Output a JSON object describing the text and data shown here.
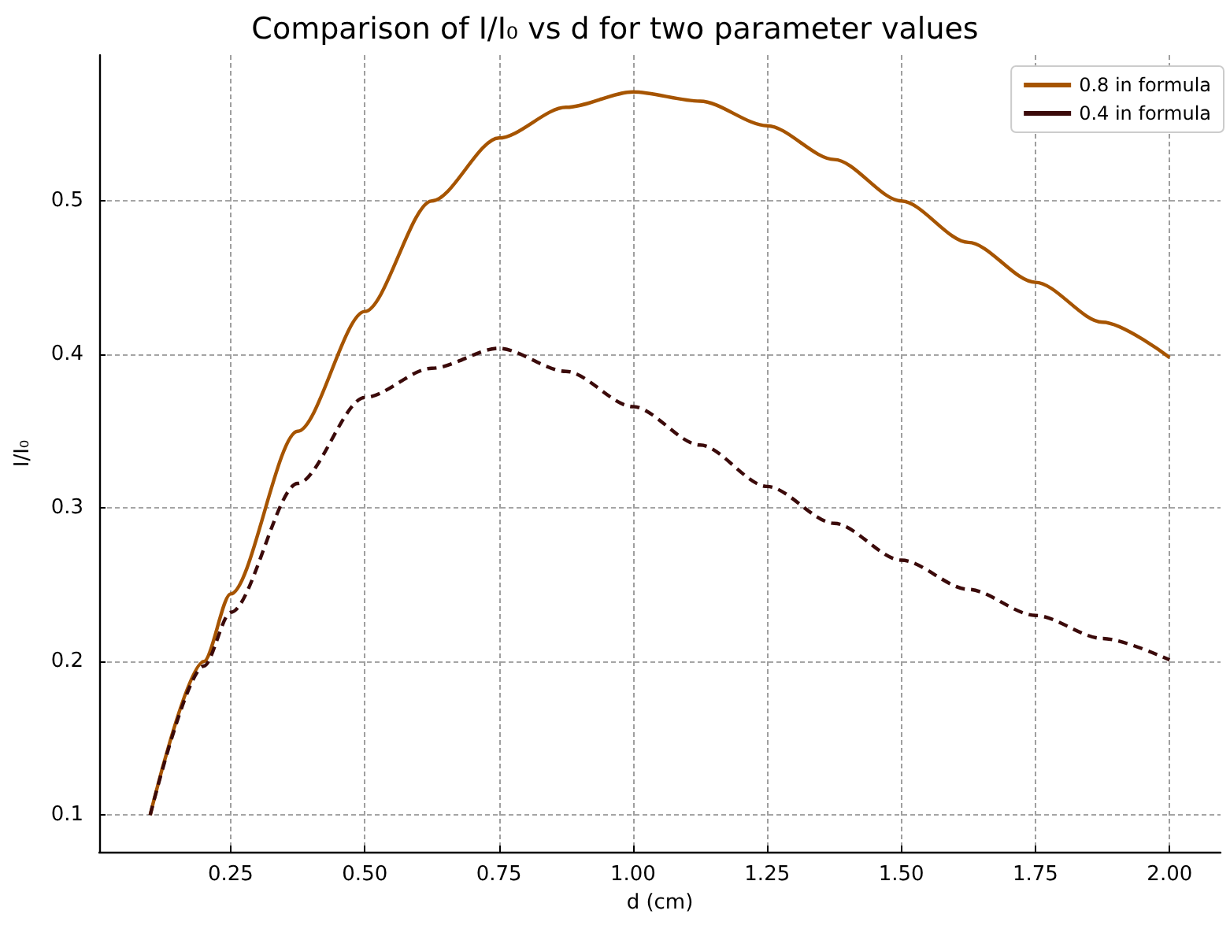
{
  "chart_data": {
    "type": "line",
    "title": "Comparison of I/I₀ vs d for two parameter values",
    "xlabel": "d (cm)",
    "ylabel": "I/I₀",
    "x": [
      0.1,
      0.2,
      0.25,
      0.375,
      0.5,
      0.625,
      0.75,
      0.875,
      1.0,
      1.125,
      1.25,
      1.375,
      1.5,
      1.625,
      1.75,
      1.875,
      2.0
    ],
    "series": [
      {
        "name": "0.8 in formula",
        "color": "#a65400",
        "line_style": "solid",
        "values": [
          0.1,
          0.2,
          0.244,
          0.35,
          0.428,
          0.5,
          0.541,
          0.561,
          0.571,
          0.565,
          0.549,
          0.527,
          0.5,
          0.473,
          0.447,
          0.421,
          0.398
        ]
      },
      {
        "name": "0.4 in formula",
        "color": "#3b0a0a",
        "line_style": "dashed",
        "values": [
          0.1,
          0.197,
          0.232,
          0.316,
          0.372,
          0.391,
          0.404,
          0.389,
          0.366,
          0.341,
          0.314,
          0.29,
          0.266,
          0.247,
          0.23,
          0.215,
          0.201
        ]
      }
    ],
    "xlim": [
      0.005,
      2.095
    ],
    "ylim": [
      0.076,
      0.595
    ],
    "xticks": [
      0.25,
      {
        "value": 0.5,
        "label": "0.50"
      },
      0.75,
      {
        "value": 1.0,
        "label": "1.00"
      },
      1.25,
      {
        "value": 1.5,
        "label": "1.50"
      },
      1.75,
      {
        "value": 2.0,
        "label": "2.00"
      }
    ],
    "yticks": [
      0.1,
      0.2,
      0.3,
      0.4,
      0.5
    ],
    "grid": true,
    "legend": "top right",
    "marker": "none"
  }
}
